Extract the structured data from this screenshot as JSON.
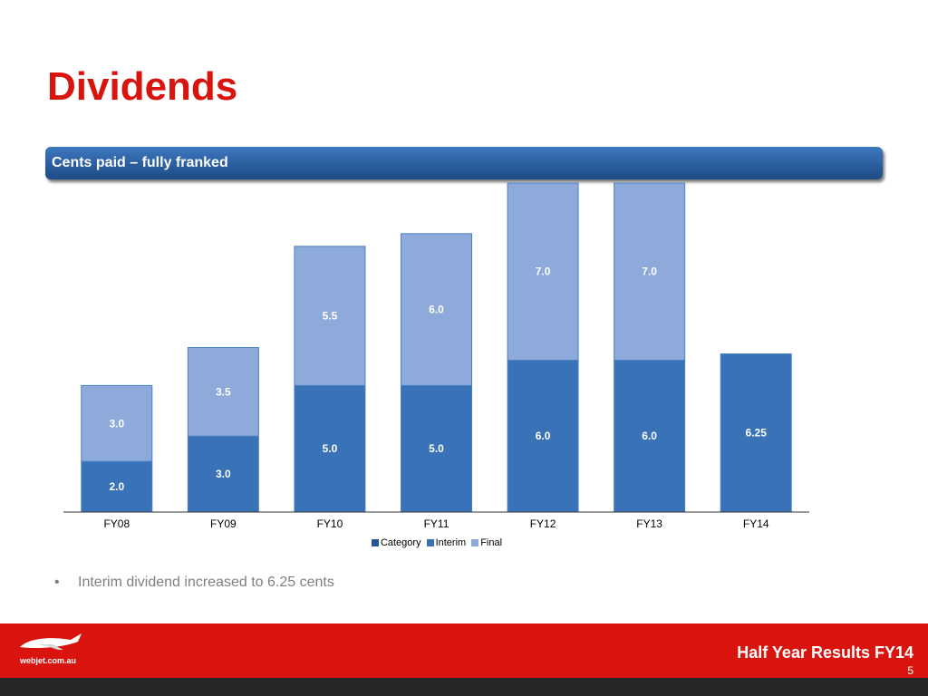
{
  "slide": {
    "title": "Dividends",
    "banner": "Cents paid – fully franked",
    "bullet": "Interim dividend increased to 6.25 cents",
    "footer_title": "Half Year Results FY14",
    "page_number": "5",
    "logo_text": "webjet.com.au"
  },
  "colors": {
    "title": "#d9140f",
    "interim": "#3a72b8",
    "final": "#8eaadb",
    "category": "#2a5494",
    "footer": "#d9140f"
  },
  "chart_data": {
    "type": "bar",
    "stacked": true,
    "categories": [
      "FY08",
      "FY09",
      "FY10",
      "FY11",
      "FY12",
      "FY13",
      "FY14"
    ],
    "series": [
      {
        "name": "Interim",
        "values": [
          2.0,
          3.0,
          5.0,
          5.0,
          6.0,
          6.0,
          6.25
        ],
        "labels": [
          "2.0",
          "3.0",
          "5.0",
          "5.0",
          "6.0",
          "6.0",
          "6.25"
        ]
      },
      {
        "name": "Final",
        "values": [
          3.0,
          3.5,
          5.5,
          6.0,
          7.0,
          7.0,
          null
        ],
        "labels": [
          "3.0",
          "3.5",
          "5.5",
          "6.0",
          "7.0",
          "7.0",
          ""
        ]
      }
    ],
    "legend": [
      "Category",
      "Interim",
      "Final"
    ],
    "legend_position": "bottom",
    "ylim": [
      0,
      13
    ],
    "grid": false
  }
}
